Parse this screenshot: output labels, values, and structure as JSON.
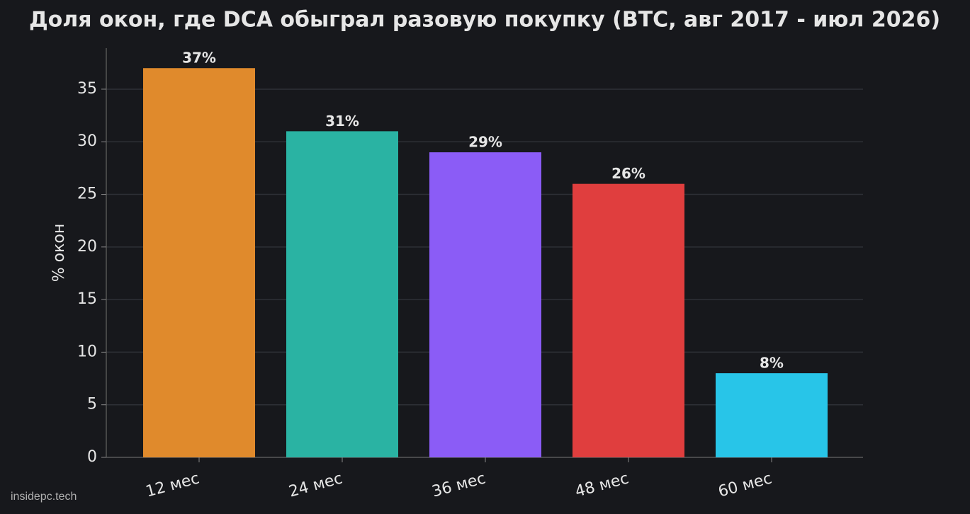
{
  "chart_data": {
    "type": "bar",
    "title": "Доля окон, где DCA обыграл разовую покупку (BTC, авг 2017 - июл 2026)",
    "y_label": "% окон",
    "categories": [
      "12 мес",
      "24 мес",
      "36 мес",
      "48 мес",
      "60 мес"
    ],
    "values": [
      37,
      31,
      29,
      26,
      8
    ],
    "value_labels": [
      "37%",
      "31%",
      "29%",
      "26%",
      "8%"
    ],
    "colors": [
      "#e08a2c",
      "#2ab3a3",
      "#8b5cf6",
      "#e03e3e",
      "#28c5e8"
    ],
    "ylim": [
      0,
      38.9
    ],
    "yticks": [
      0,
      5,
      10,
      15,
      20,
      25,
      30,
      35
    ],
    "grid": true,
    "source": "insidepc.tech"
  }
}
